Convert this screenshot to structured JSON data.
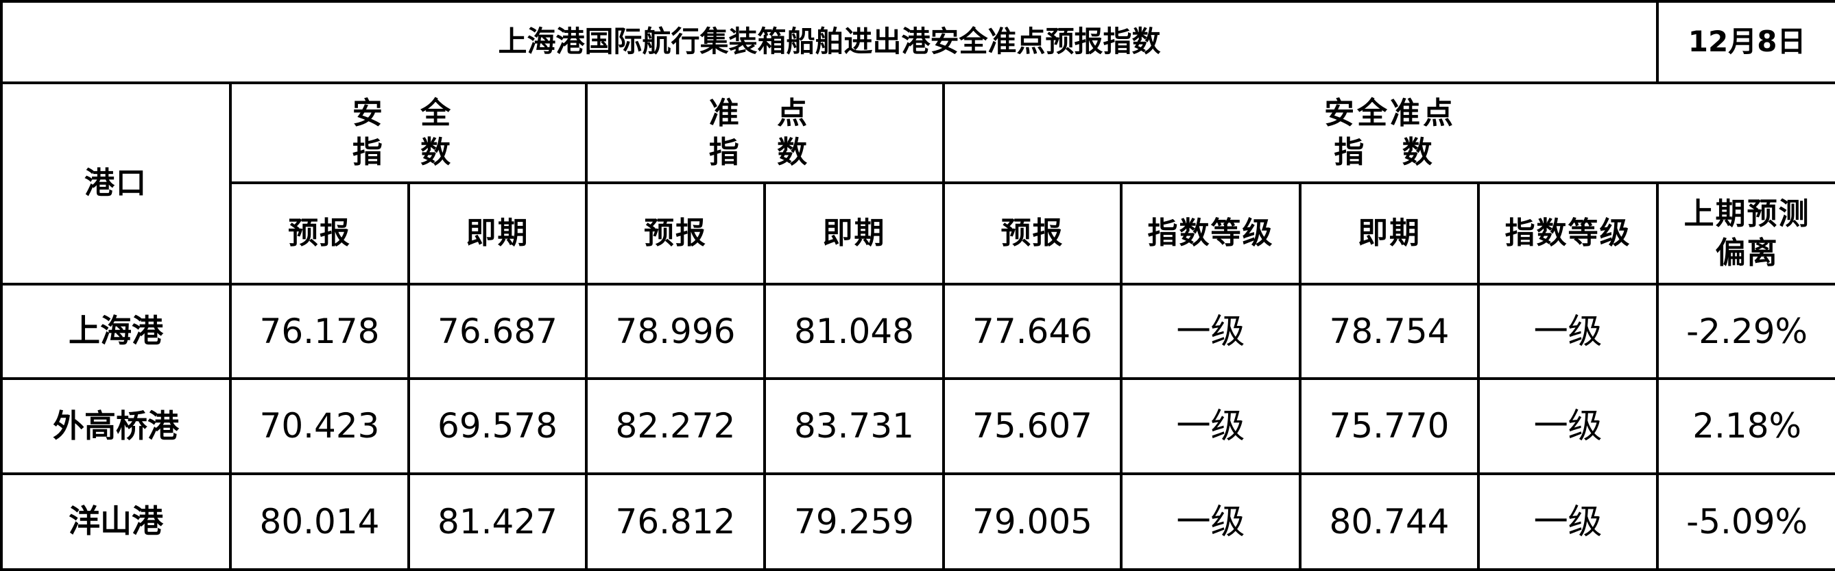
{
  "title": "上海港国际航行集装箱船舶进出港安全准点预报指数",
  "date": "12月8日",
  "headers": {
    "port": "港口",
    "groups": [
      {
        "line1": "安 全",
        "line2": "指 数"
      },
      {
        "line1": "准 点",
        "line2": "指 数"
      },
      {
        "line1": "安全准点",
        "line2": "指 数"
      }
    ],
    "sub": [
      "预报",
      "即期",
      "预报",
      "即期",
      "预报",
      "指数等级",
      "即期",
      "指数等级"
    ],
    "deviation": {
      "line1": "上期预测",
      "line2": "偏离"
    }
  },
  "rows": [
    {
      "port": "上海港",
      "values": [
        "76.178",
        "76.687",
        "78.996",
        "81.048",
        "77.646",
        "一级",
        "78.754",
        "一级",
        "-2.29%"
      ]
    },
    {
      "port": "外高桥港",
      "values": [
        "70.423",
        "69.578",
        "82.272",
        "83.731",
        "75.607",
        "一级",
        "75.770",
        "一级",
        "2.18%"
      ]
    },
    {
      "port": "洋山港",
      "values": [
        "80.014",
        "81.427",
        "76.812",
        "79.259",
        "79.005",
        "一级",
        "80.744",
        "一级",
        "-5.09%"
      ]
    }
  ]
}
